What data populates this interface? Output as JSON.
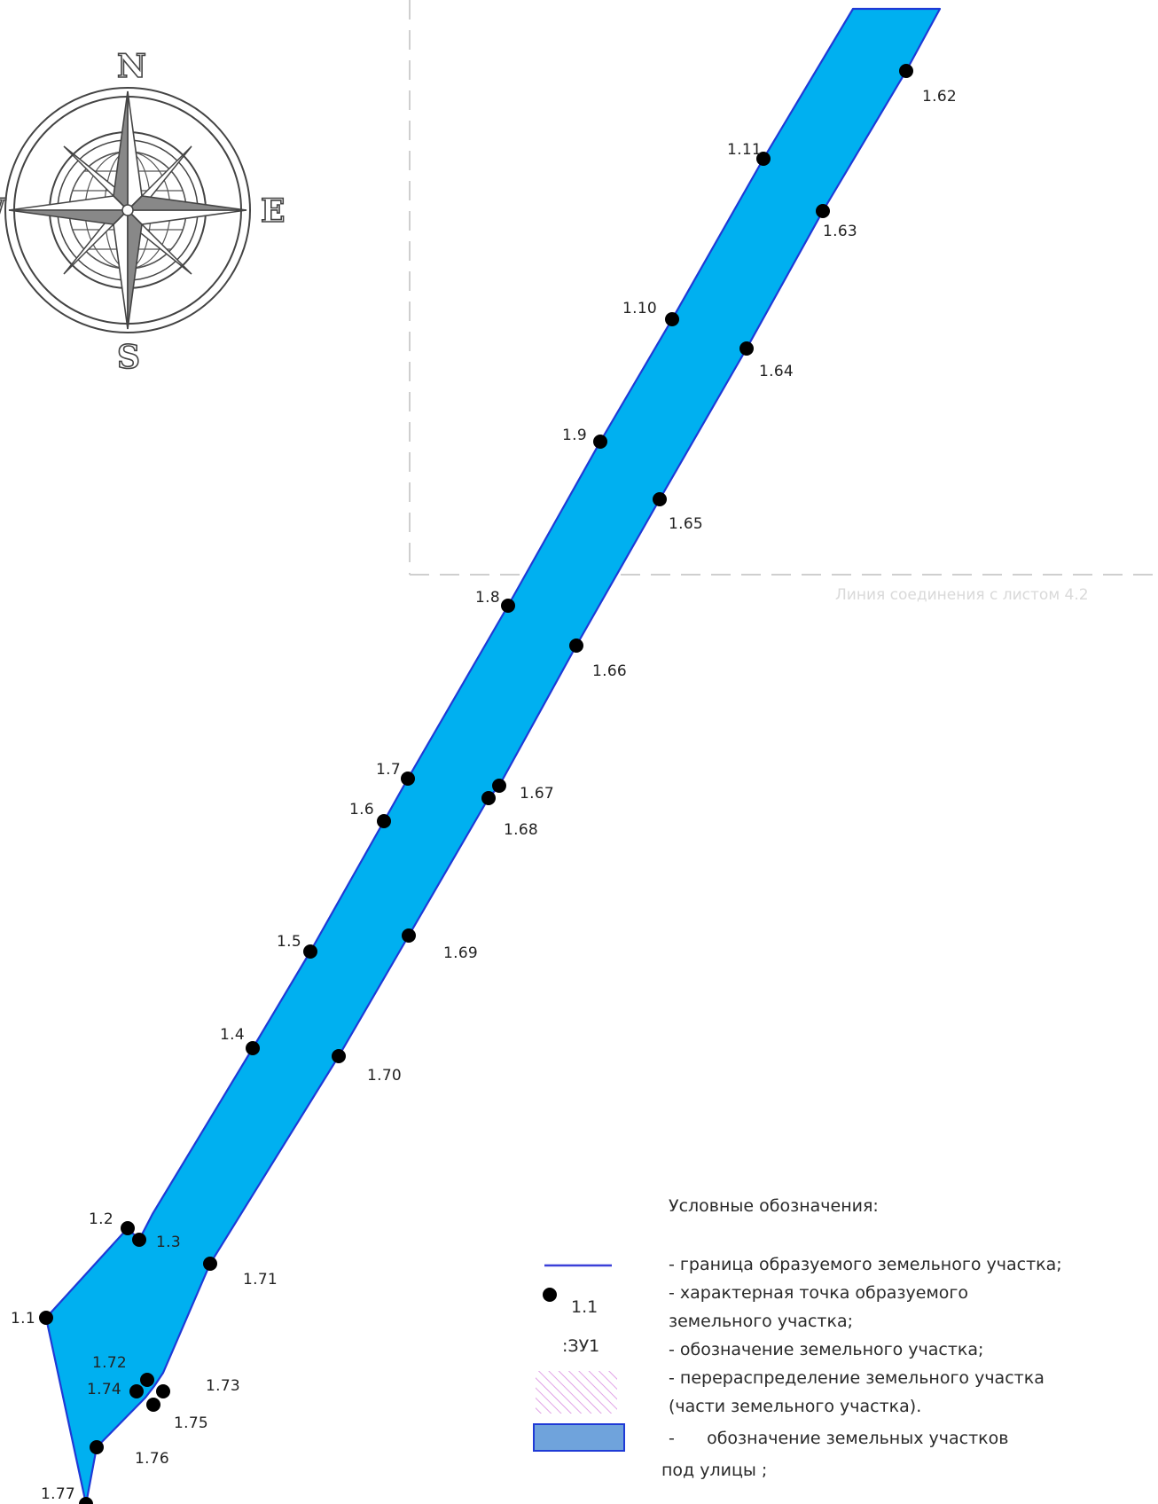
{
  "connection_line_label": "Линия соединения с листом 4.2",
  "compass": {
    "north": "N",
    "east": "E",
    "south": "S",
    "west": "W"
  },
  "points": {
    "p1_1": "1.1",
    "p1_2": "1.2",
    "p1_3": "1.3",
    "p1_4": "1.4",
    "p1_5": "1.5",
    "p1_6": "1.6",
    "p1_7": "1.7",
    "p1_8": "1.8",
    "p1_9": "1.9",
    "p1_10": "1.10",
    "p1_11": "1.11",
    "p1_62": "1.62",
    "p1_63": "1.63",
    "p1_64": "1.64",
    "p1_65": "1.65",
    "p1_66": "1.66",
    "p1_67": "1.67",
    "p1_68": "1.68",
    "p1_69": "1.69",
    "p1_70": "1.70",
    "p1_71": "1.71",
    "p1_72": "1.72",
    "p1_73": "1.73",
    "p1_74": "1.74",
    "p1_75": "1.75",
    "p1_76": "1.76",
    "p1_77": "1.77"
  },
  "legend": {
    "title": "Условные обозначения:",
    "point_sample_label": "1.1",
    "parcel_sample_label": ":ЗУ1",
    "line1": "- граница образуемого земельного участка;",
    "line2": "- характерная точка образуемого",
    "line3": "земельного участка;",
    "line4": "- обозначение земельного участка;",
    "line5": "- перераспределение земельного участка",
    "line6": "(части земельного участка).",
    "line7": "-      обозначение земельных участков",
    "line8": "под улицы ;"
  },
  "colors": {
    "parcel_fill": "#00b0f0",
    "boundary": "#1f3ad6",
    "legend_street_fill": "#6fa3dc",
    "redistribution_hatch": "#d98be0"
  }
}
